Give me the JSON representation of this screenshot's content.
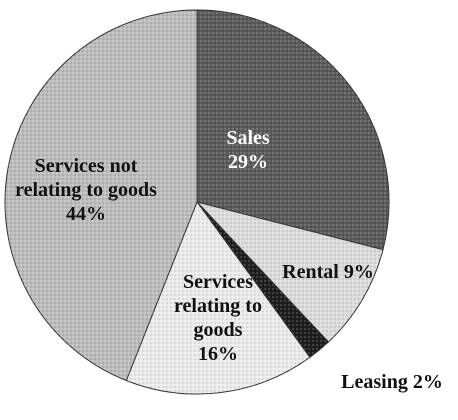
{
  "chart_data": {
    "type": "pie",
    "categories": [
      "Sales",
      "Rental",
      "Leasing",
      "Services relating to goods",
      "Services not relating to goods"
    ],
    "values": [
      29,
      9,
      2,
      16,
      44
    ],
    "value_labels": [
      "29%",
      "9%",
      "2%",
      "16%",
      "44%"
    ],
    "colors": [
      "#5a5a5a",
      "#dcdcdc",
      "#1e1e1e",
      "#ececec",
      "#bdbdbd"
    ]
  }
}
